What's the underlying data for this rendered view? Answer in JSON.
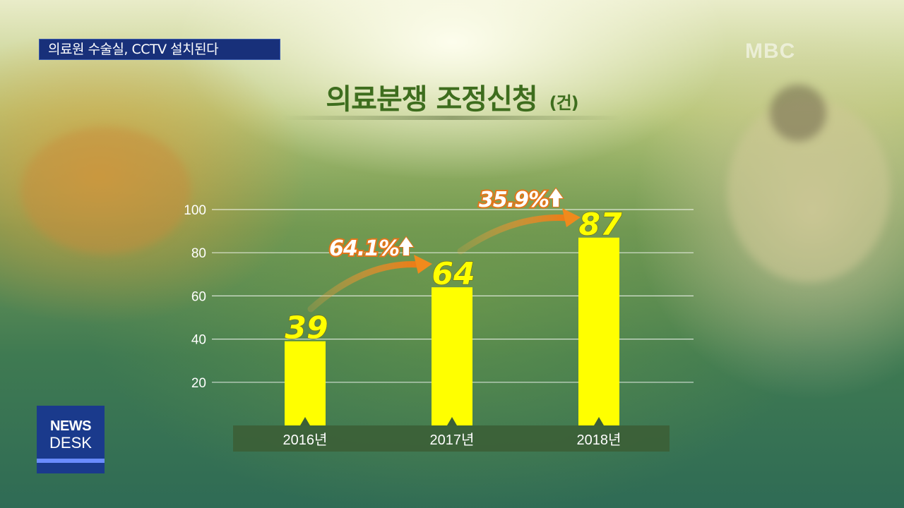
{
  "caption": "의료원 수술실, CCTV 설치된다",
  "watermark": "MBC",
  "logo": {
    "line1": "NEWS",
    "line2": "DESK"
  },
  "colors": {
    "bar": "#ffff00",
    "axis_band": "#3c5f37",
    "arrow": "#f08a1c",
    "title": "#3e6d1e",
    "caption_bg": "#18307a"
  },
  "chart_data": {
    "type": "bar",
    "title": "의료분쟁 조정신청",
    "unit": "(건)",
    "categories": [
      "2016년",
      "2017년",
      "2018년"
    ],
    "values": [
      39,
      64,
      87
    ],
    "ylim": [
      0,
      100
    ],
    "yticks": [
      20,
      40,
      60,
      80,
      100
    ],
    "grid": true,
    "annotations": [
      {
        "from": "2016년",
        "to": "2017년",
        "text": "64.1%"
      },
      {
        "from": "2017년",
        "to": "2018년",
        "text": "35.9%"
      }
    ]
  }
}
